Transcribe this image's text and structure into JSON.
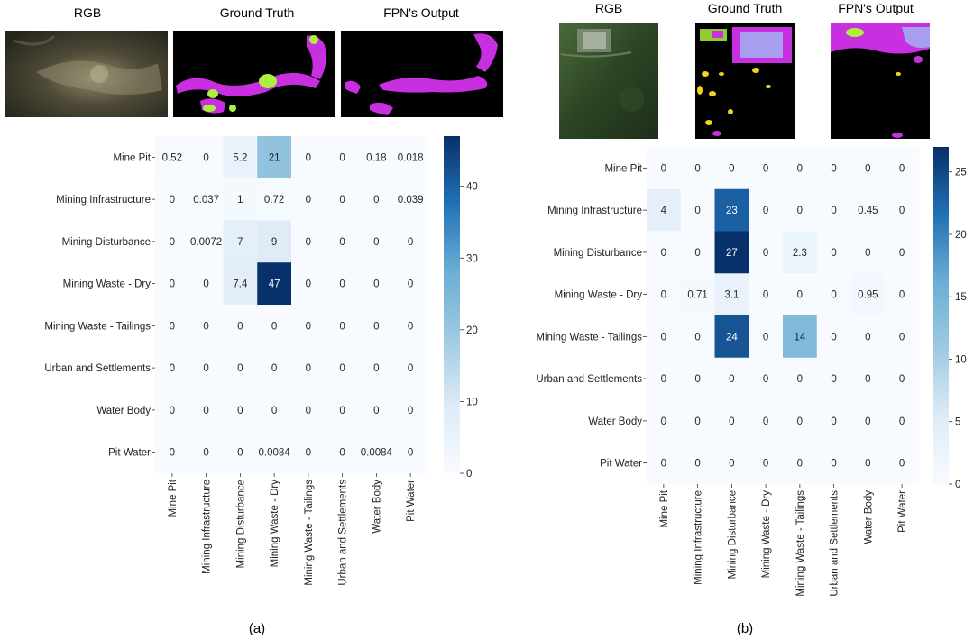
{
  "panels": [
    {
      "image_titles": [
        "RGB",
        "Ground Truth",
        "FPN's Output"
      ],
      "caption": "(a)"
    },
    {
      "image_titles": [
        "RGB",
        "Ground Truth",
        "FPN's Output"
      ],
      "caption": "(b)"
    }
  ],
  "colors": {
    "cmap_low": "#f7fbff",
    "cmap_mid": "#6baed6",
    "cmap_high": "#08306b",
    "mask_purple": "#c72fe0",
    "mask_green": "#aaf03c",
    "mask_yellow": "#f2d21a",
    "mask_lavender": "#a79ef0"
  },
  "chart_data": [
    {
      "type": "heatmap",
      "title": "",
      "xlabel": "",
      "ylabel": "",
      "row_labels": [
        "Mine Pit",
        "Mining Infrastructure",
        "Mining Disturbance",
        "Mining Waste - Dry",
        "Mining Waste - Tailings",
        "Urban and Settlements",
        "Water Body",
        "Pit Water"
      ],
      "col_labels": [
        "Mine Pit",
        "Mining Infrastructure",
        "Mining Disturbance",
        "Mining Waste - Dry",
        "Mining Waste - Tailings",
        "Urban and Settlements",
        "Water Body",
        "Pit Water"
      ],
      "values": [
        [
          0.52,
          0,
          5.2,
          21,
          0,
          0,
          0.18,
          0.018
        ],
        [
          0,
          0.037,
          1,
          0.72,
          0,
          0,
          0,
          0.039
        ],
        [
          0,
          0.0072,
          7,
          9,
          0,
          0,
          0,
          0
        ],
        [
          0,
          0,
          7.4,
          47,
          0,
          0,
          0,
          0
        ],
        [
          0,
          0,
          0,
          0,
          0,
          0,
          0,
          0
        ],
        [
          0,
          0,
          0,
          0,
          0,
          0,
          0,
          0
        ],
        [
          0,
          0,
          0,
          0,
          0,
          0,
          0,
          0
        ],
        [
          0,
          0,
          0,
          0.0084,
          0,
          0,
          0.0084,
          0
        ]
      ],
      "labels": [
        [
          "0.52",
          "0",
          "5.2",
          "21",
          "0",
          "0",
          "0.18",
          "0.018"
        ],
        [
          "0",
          "0.037",
          "1",
          "0.72",
          "0",
          "0",
          "0",
          "0.039"
        ],
        [
          "0",
          "0.0072",
          "7",
          "9",
          "0",
          "0",
          "0",
          "0"
        ],
        [
          "0",
          "0",
          "7.4",
          "47",
          "0",
          "0",
          "0",
          "0"
        ],
        [
          "0",
          "0",
          "0",
          "0",
          "0",
          "0",
          "0",
          "0"
        ],
        [
          "0",
          "0",
          "0",
          "0",
          "0",
          "0",
          "0",
          "0"
        ],
        [
          "0",
          "0",
          "0",
          "0",
          "0",
          "0",
          "0",
          "0"
        ],
        [
          "0",
          "0",
          "0",
          "0.0084",
          "0",
          "0",
          "0.0084",
          "0"
        ]
      ],
      "colorbar": {
        "min": 0,
        "max": 47,
        "ticks": [
          0,
          10,
          20,
          30,
          40
        ]
      }
    },
    {
      "type": "heatmap",
      "title": "",
      "xlabel": "",
      "ylabel": "",
      "row_labels": [
        "Mine Pit",
        "Mining Infrastructure",
        "Mining Disturbance",
        "Mining Waste - Dry",
        "Mining Waste - Tailings",
        "Urban and Settlements",
        "Water Body",
        "Pit Water"
      ],
      "col_labels": [
        "Mine Pit",
        "Mining Infrastructure",
        "Mining Disturbance",
        "Mining Waste - Dry",
        "Mining Waste - Tailings",
        "Urban and Settlements",
        "Water Body",
        "Pit Water"
      ],
      "values": [
        [
          0,
          0,
          0,
          0,
          0,
          0,
          0,
          0
        ],
        [
          4,
          0,
          23,
          0,
          0,
          0,
          0.45,
          0
        ],
        [
          0,
          0,
          27,
          0,
          2.3,
          0,
          0,
          0
        ],
        [
          0,
          0.71,
          3.1,
          0,
          0,
          0,
          0.95,
          0
        ],
        [
          0,
          0,
          24,
          0,
          14,
          0,
          0,
          0
        ],
        [
          0,
          0,
          0,
          0,
          0,
          0,
          0,
          0
        ],
        [
          0,
          0,
          0,
          0,
          0,
          0,
          0,
          0
        ],
        [
          0,
          0,
          0,
          0,
          0,
          0,
          0,
          0
        ]
      ],
      "labels": [
        [
          "0",
          "0",
          "0",
          "0",
          "0",
          "0",
          "0",
          "0"
        ],
        [
          "4",
          "0",
          "23",
          "0",
          "0",
          "0",
          "0.45",
          "0"
        ],
        [
          "0",
          "0",
          "27",
          "0",
          "2.3",
          "0",
          "0",
          "0"
        ],
        [
          "0",
          "0.71",
          "3.1",
          "0",
          "0",
          "0",
          "0.95",
          "0"
        ],
        [
          "0",
          "0",
          "24",
          "0",
          "14",
          "0",
          "0",
          "0"
        ],
        [
          "0",
          "0",
          "0",
          "0",
          "0",
          "0",
          "0",
          "0"
        ],
        [
          "0",
          "0",
          "0",
          "0",
          "0",
          "0",
          "0",
          "0"
        ],
        [
          "0",
          "0",
          "0",
          "0",
          "0",
          "0",
          "0",
          "0"
        ]
      ],
      "colorbar": {
        "min": 0,
        "max": 27,
        "ticks": [
          0,
          5,
          10,
          15,
          20,
          25
        ]
      }
    }
  ]
}
